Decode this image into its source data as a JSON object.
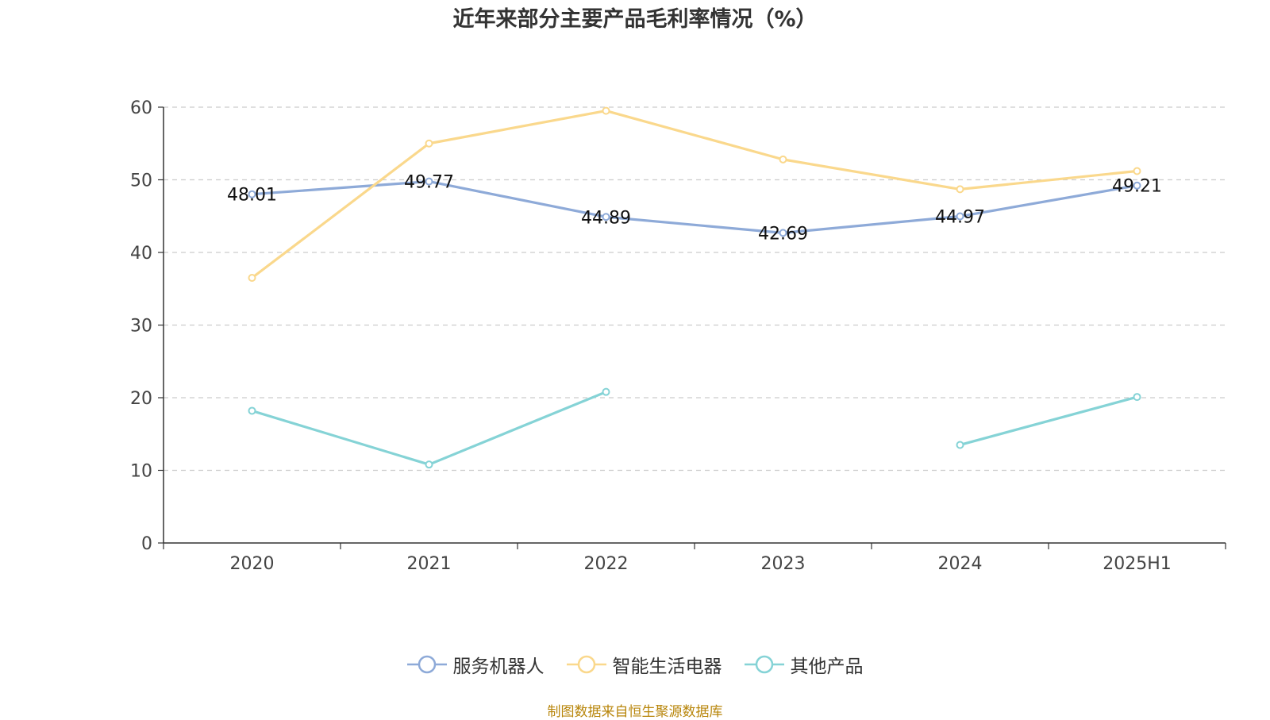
{
  "title": "近年来部分主要产品毛利率情况（%）",
  "source": "制图数据来自恒生聚源数据库",
  "chart_data": {
    "type": "line",
    "title": "近年来部分主要产品毛利率情况（%）",
    "categories": [
      "2020",
      "2021",
      "2022",
      "2023",
      "2024",
      "2025H1"
    ],
    "ylim": [
      0,
      60
    ],
    "yticks": [
      0,
      10,
      20,
      30,
      40,
      50,
      60
    ],
    "grid": true,
    "legend_position": "bottom",
    "series": [
      {
        "name": "服务机器人",
        "color": "#8eaad8",
        "values": [
          48.01,
          49.77,
          44.89,
          42.69,
          44.97,
          49.21
        ],
        "labels": [
          "48.01",
          "49.77",
          "44.89",
          "42.69",
          "44.97",
          "49.21"
        ]
      },
      {
        "name": "智能生活电器",
        "color": "#fad88c",
        "values": [
          36.5,
          55.0,
          59.5,
          52.8,
          48.7,
          51.2
        ]
      },
      {
        "name": "其他产品",
        "color": "#85d3d6",
        "values": [
          18.2,
          10.8,
          20.8,
          null,
          13.5,
          20.1
        ]
      }
    ]
  }
}
